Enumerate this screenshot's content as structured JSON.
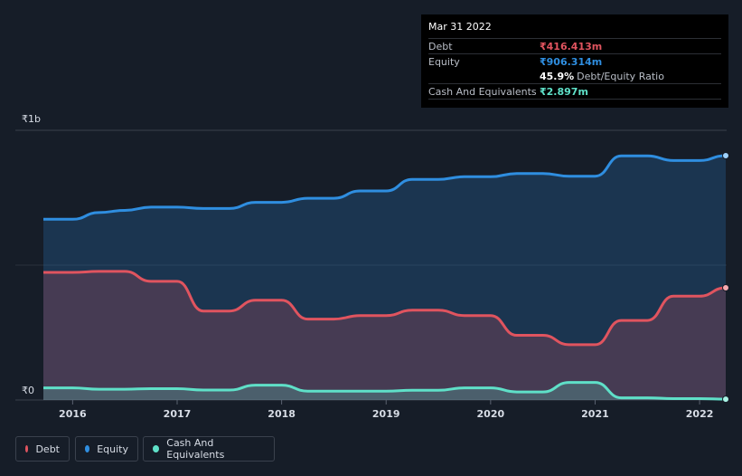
{
  "tooltip": {
    "date": "Mar 31 2022",
    "debt_label": "Debt",
    "debt_value": "₹416.413m",
    "equity_label": "Equity",
    "equity_value": "₹906.314m",
    "ratio_value": "45.9%",
    "ratio_label": "Debt/Equity Ratio",
    "cash_label": "Cash And Equivalents",
    "cash_value": "₹2.897m"
  },
  "legend": {
    "debt": "Debt",
    "equity": "Equity",
    "cash": "Cash And Equivalents"
  },
  "colors": {
    "debt": "#e0545f",
    "equity": "#2f8ee0",
    "cash": "#5fe0c8",
    "background": "#161d28"
  },
  "chart_data": {
    "type": "area",
    "ylabel_top": "₹1b",
    "ylabel_bottom": "₹0",
    "ylim": [
      0,
      1000
    ],
    "xlim": [
      2015.7,
      2022.25
    ],
    "x_ticks": [
      "2016",
      "2017",
      "2018",
      "2019",
      "2020",
      "2021",
      "2022"
    ],
    "x_tick_values": [
      2016,
      2017,
      2018,
      2019,
      2020,
      2021,
      2022
    ],
    "series": [
      {
        "name": "Equity",
        "x": [
          2015.72,
          2016.0,
          2016.25,
          2016.5,
          2016.75,
          2017.0,
          2017.25,
          2017.5,
          2017.75,
          2018.0,
          2018.25,
          2018.5,
          2018.75,
          2019.0,
          2019.25,
          2019.5,
          2019.75,
          2020.0,
          2020.25,
          2020.5,
          2020.75,
          2021.0,
          2021.25,
          2021.5,
          2021.75,
          2022.0,
          2022.25
        ],
        "values": [
          670,
          670,
          695,
          703,
          715,
          715,
          710,
          710,
          733,
          733,
          748,
          748,
          775,
          775,
          818,
          818,
          828,
          828,
          840,
          840,
          830,
          830,
          905,
          905,
          888,
          888,
          906
        ]
      },
      {
        "name": "Debt",
        "x": [
          2015.72,
          2016.0,
          2016.25,
          2016.5,
          2016.75,
          2017.0,
          2017.25,
          2017.5,
          2017.75,
          2018.0,
          2018.25,
          2018.5,
          2018.75,
          2019.0,
          2019.25,
          2019.5,
          2019.75,
          2020.0,
          2020.25,
          2020.5,
          2020.75,
          2021.0,
          2021.25,
          2021.5,
          2021.75,
          2022.0,
          2022.25
        ],
        "values": [
          473,
          473,
          477,
          477,
          440,
          440,
          330,
          330,
          370,
          370,
          300,
          300,
          313,
          313,
          333,
          333,
          313,
          313,
          240,
          240,
          205,
          205,
          295,
          295,
          385,
          385,
          416
        ]
      },
      {
        "name": "Cash And Equivalents",
        "x": [
          2015.72,
          2016.0,
          2016.25,
          2016.5,
          2016.75,
          2017.0,
          2017.25,
          2017.5,
          2017.75,
          2018.0,
          2018.25,
          2018.5,
          2018.75,
          2019.0,
          2019.25,
          2019.5,
          2019.75,
          2020.0,
          2020.25,
          2020.5,
          2020.75,
          2021.0,
          2021.25,
          2021.5,
          2021.75,
          2022.0,
          2022.25
        ],
        "values": [
          45,
          45,
          40,
          40,
          42,
          42,
          37,
          37,
          55,
          55,
          33,
          33,
          33,
          33,
          36,
          36,
          45,
          45,
          30,
          30,
          65,
          65,
          8,
          8,
          5,
          5,
          3
        ]
      }
    ]
  }
}
